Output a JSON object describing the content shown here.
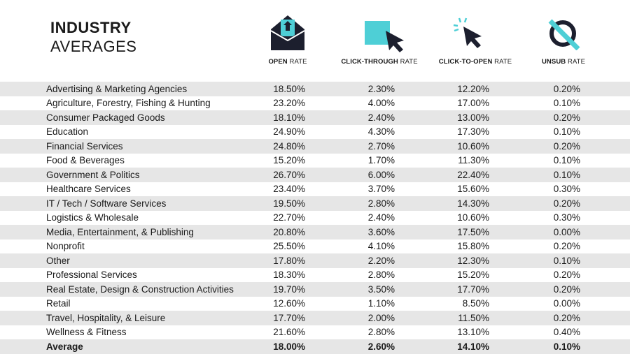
{
  "title": {
    "line1": "INDUSTRY",
    "line2": "AVERAGES"
  },
  "columns": [
    {
      "key": "open",
      "bold": "OPEN",
      "rest": " RATE",
      "icon": "envelope-icon"
    },
    {
      "key": "ctr",
      "bold": "CLICK-THROUGH",
      "rest": " RATE",
      "icon": "cursor-square-icon"
    },
    {
      "key": "ctor",
      "bold": "CLICK-TO-OPEN",
      "rest": " RATE",
      "icon": "cursor-click-icon"
    },
    {
      "key": "unsub",
      "bold": "UNSUB",
      "rest": " RATE",
      "icon": "unsubscribe-icon"
    }
  ],
  "colors": {
    "navy": "#1c1f2e",
    "teal": "#4ecfd6",
    "stripe": "#e6e6e6"
  },
  "chart_data": {
    "type": "table",
    "columns": [
      "OPEN RATE",
      "CLICK-THROUGH RATE",
      "CLICK-TO-OPEN RATE",
      "UNSUB RATE"
    ],
    "rows": [
      {
        "industry": "Advertising & Marketing Agencies",
        "values": [
          "18.50%",
          "2.30%",
          "12.20%",
          "0.20%"
        ]
      },
      {
        "industry": "Agriculture, Forestry, Fishing & Hunting",
        "values": [
          "23.20%",
          "4.00%",
          "17.00%",
          "0.10%"
        ]
      },
      {
        "industry": "Consumer Packaged Goods",
        "values": [
          "18.10%",
          "2.40%",
          "13.00%",
          "0.20%"
        ]
      },
      {
        "industry": "Education",
        "values": [
          "24.90%",
          "4.30%",
          "17.30%",
          "0.10%"
        ]
      },
      {
        "industry": "Financial Services",
        "values": [
          "24.80%",
          "2.70%",
          "10.60%",
          "0.20%"
        ]
      },
      {
        "industry": "Food & Beverages",
        "values": [
          "15.20%",
          "1.70%",
          "11.30%",
          "0.10%"
        ]
      },
      {
        "industry": "Government & Politics",
        "values": [
          "26.70%",
          "6.00%",
          "22.40%",
          "0.10%"
        ]
      },
      {
        "industry": "Healthcare Services",
        "values": [
          "23.40%",
          "3.70%",
          "15.60%",
          "0.30%"
        ]
      },
      {
        "industry": "IT / Tech / Software Services",
        "values": [
          "19.50%",
          "2.80%",
          "14.30%",
          "0.20%"
        ]
      },
      {
        "industry": "Logistics & Wholesale",
        "values": [
          "22.70%",
          "2.40%",
          "10.60%",
          "0.30%"
        ]
      },
      {
        "industry": "Media, Entertainment, & Publishing",
        "values": [
          "20.80%",
          "3.60%",
          "17.50%",
          "0.00%"
        ]
      },
      {
        "industry": "Nonprofit",
        "values": [
          "25.50%",
          "4.10%",
          "15.80%",
          "0.20%"
        ]
      },
      {
        "industry": "Other",
        "values": [
          "17.80%",
          "2.20%",
          "12.30%",
          "0.10%"
        ]
      },
      {
        "industry": "Professional Services",
        "values": [
          "18.30%",
          "2.80%",
          "15.20%",
          "0.20%"
        ]
      },
      {
        "industry": "Real Estate, Design & Construction Activities",
        "values": [
          "19.70%",
          "3.50%",
          "17.70%",
          "0.20%"
        ]
      },
      {
        "industry": "Retail",
        "values": [
          "12.60%",
          "1.10%",
          "8.50%",
          "0.00%"
        ]
      },
      {
        "industry": "Travel, Hospitality, & Leisure",
        "values": [
          "17.70%",
          "2.00%",
          "11.50%",
          "0.20%"
        ]
      },
      {
        "industry": "Wellness & Fitness",
        "values": [
          "21.60%",
          "2.80%",
          "13.10%",
          "0.40%"
        ]
      }
    ],
    "average": {
      "industry": "Average",
      "values": [
        "18.00%",
        "2.60%",
        "14.10%",
        "0.10%"
      ]
    }
  }
}
